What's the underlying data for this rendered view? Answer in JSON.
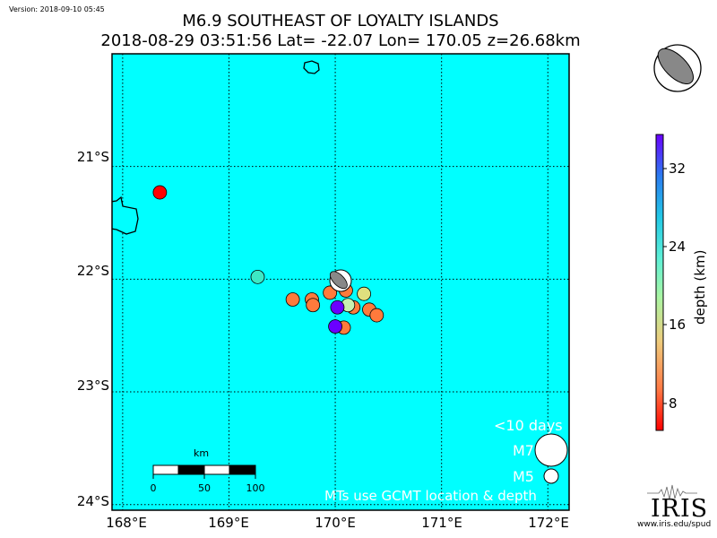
{
  "version": "Version: 2018-09-10 05:45",
  "title": {
    "line1": "M6.9 SOUTHEAST OF LOYALTY ISLANDS",
    "line2": "2018-08-29 03:51:56 Lat= -22.07 Lon= 170.05 z=26.68km"
  },
  "map": {
    "lon_range": [
      167.9,
      172.2
    ],
    "lat_range": [
      -24.05,
      -20.0
    ],
    "background": "#00ffff",
    "x_ticks": [
      "168°E",
      "169°E",
      "170°E",
      "171°E",
      "172°E"
    ],
    "y_ticks": [
      "21°S",
      "22°S",
      "23°S",
      "24°S"
    ],
    "grid": "dotted"
  },
  "colorbar": {
    "label": "depth (km)",
    "ticks": [
      "8",
      "16",
      "24",
      "32"
    ],
    "colors": [
      "#ff0000",
      "#ff7a45",
      "#eecb7c",
      "#aaf5a3",
      "#5ef0d6",
      "#22c8e6",
      "#2b7bf0",
      "#6a00ff"
    ]
  },
  "events": [
    {
      "lon": 168.35,
      "lat": -21.23,
      "depth": 4,
      "color": "#ff0000"
    },
    {
      "lon": 169.27,
      "lat": -21.98,
      "depth": 22,
      "color": "#3de8c4"
    },
    {
      "lon": 169.6,
      "lat": -22.18,
      "depth": 10,
      "color": "#ff7a3c"
    },
    {
      "lon": 169.78,
      "lat": -22.18,
      "depth": 10,
      "color": "#ff7a3c"
    },
    {
      "lon": 169.79,
      "lat": -22.23,
      "depth": 10,
      "color": "#ff7a3c"
    },
    {
      "lon": 169.95,
      "lat": -22.12,
      "depth": 10,
      "color": "#ff7a3c"
    },
    {
      "lon": 170.1,
      "lat": -22.1,
      "depth": 10,
      "color": "#ff7a3c"
    },
    {
      "lon": 170.17,
      "lat": -22.25,
      "depth": 10,
      "color": "#ff7a3c"
    },
    {
      "lon": 170.32,
      "lat": -22.27,
      "depth": 10,
      "color": "#ff7a3c"
    },
    {
      "lon": 170.39,
      "lat": -22.32,
      "depth": 10,
      "color": "#ff7a3c"
    },
    {
      "lon": 170.08,
      "lat": -22.43,
      "depth": 10,
      "color": "#ff7a3c"
    },
    {
      "lon": 170.27,
      "lat": -22.13,
      "depth": 14,
      "color": "#dfe07e"
    },
    {
      "lon": 170.12,
      "lat": -22.23,
      "depth": 16,
      "color": "#c8f0b0"
    },
    {
      "lon": 170.02,
      "lat": -22.25,
      "depth": 36,
      "color": "#6a00ff"
    },
    {
      "lon": 170.0,
      "lat": -22.42,
      "depth": 36,
      "color": "#6a00ff"
    }
  ],
  "mainshock": {
    "lon": 170.05,
    "lat": -22.07,
    "depth": 26.68
  },
  "legend": {
    "days": "<10 days",
    "m7": "M7",
    "m5": "M5",
    "note": "MTs use GCMT location & depth"
  },
  "scalebar": {
    "unit": "km",
    "ticks": [
      "0",
      "50",
      "100"
    ]
  },
  "logo": {
    "word": "IRIS",
    "url": "www.iris.edu/spud"
  }
}
